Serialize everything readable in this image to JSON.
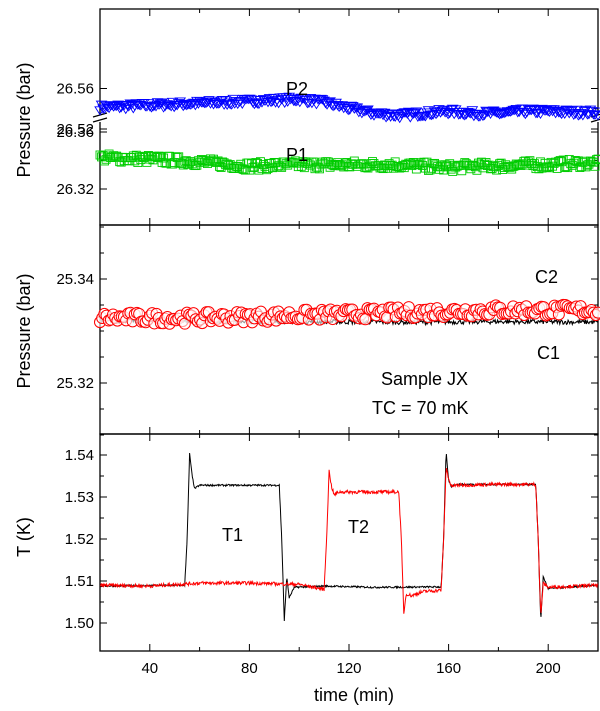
{
  "chart_data": [
    {
      "type": "scatter",
      "panel": "top",
      "ylabel": "Pressure (bar)",
      "xlim": [
        20,
        220
      ],
      "broken_y_axis": true,
      "segments": [
        {
          "ylim": [
            26.515,
            26.57
          ],
          "yticks": [
            "26.52",
            "26.56"
          ],
          "ytick_values": [
            26.52,
            26.56
          ]
        },
        {
          "ylim": [
            26.31,
            26.37
          ],
          "yticks": [
            "26.32",
            "26.36"
          ],
          "ytick_values": [
            26.32,
            26.36
          ]
        }
      ],
      "series": [
        {
          "name": "P2",
          "color": "#0000ff",
          "marker": "triangle-down-open",
          "x": [
            20,
            40,
            60,
            80,
            100,
            110,
            120,
            130,
            140,
            150,
            160,
            170,
            180,
            190,
            200,
            210,
            220
          ],
          "values": [
            26.541,
            26.543,
            26.545,
            26.547,
            26.549,
            26.546,
            26.54,
            26.535,
            26.533,
            26.535,
            26.537,
            26.535,
            26.535,
            26.537,
            26.537,
            26.536,
            26.536
          ]
        },
        {
          "name": "P1",
          "color": "#00cc00",
          "marker": "square-open",
          "x": [
            20,
            40,
            60,
            80,
            100,
            120,
            140,
            150,
            160,
            170,
            180,
            190,
            200,
            210,
            220
          ],
          "values": [
            26.342,
            26.341,
            26.339,
            26.336,
            26.337,
            26.337,
            26.337,
            26.336,
            26.335,
            26.336,
            26.336,
            26.337,
            26.337,
            26.338,
            26.338
          ]
        }
      ],
      "labels": [
        "P2",
        "P1"
      ]
    },
    {
      "type": "scatter",
      "panel": "middle",
      "ylabel": "Pressure (bar)",
      "xlim": [
        20,
        220
      ],
      "ylim": [
        25.31,
        25.35
      ],
      "yticks": [
        "25.32",
        "25.34"
      ],
      "ytick_values": [
        25.32,
        25.34
      ],
      "series": [
        {
          "name": "C2",
          "color": "#ff0000",
          "marker": "circle-open",
          "x": [
            20,
            60,
            100,
            140,
            180,
            220
          ],
          "values": [
            25.3325,
            25.3325,
            25.333,
            25.3335,
            25.334,
            25.334
          ]
        },
        {
          "name": "C1",
          "color": "#000000",
          "marker": "line",
          "x": [
            20,
            60,
            100,
            140,
            180,
            220
          ],
          "values": [
            25.332,
            25.332,
            25.3318,
            25.3317,
            25.3318,
            25.3317
          ]
        }
      ],
      "labels": [
        "C2",
        "C1"
      ],
      "annotation": [
        "Sample JX",
        "TC = 70 mK"
      ]
    },
    {
      "type": "line",
      "panel": "bottom",
      "xlabel": "time (min)",
      "ylabel": "T (K)",
      "xlim": [
        20,
        220
      ],
      "ylim": [
        1.4966,
        1.5466
      ],
      "xticks": [
        "40",
        "80",
        "120",
        "160",
        "200"
      ],
      "xtick_values": [
        40,
        80,
        120,
        160,
        200
      ],
      "yticks": [
        "1.50",
        "1.51",
        "1.52",
        "1.53",
        "1.54"
      ],
      "ytick_values": [
        1.5,
        1.51,
        1.52,
        1.53,
        1.54
      ],
      "series": [
        {
          "name": "T1",
          "color": "#000000",
          "x": [
            20,
            54,
            55,
            56,
            57,
            58,
            60,
            92,
            93,
            94,
            95,
            96,
            98,
            110,
            130,
            157,
            158,
            159,
            160,
            161,
            163,
            195,
            196,
            197,
            198,
            200,
            220
          ],
          "values": [
            1.5088,
            1.509,
            1.52,
            1.5404,
            1.535,
            1.532,
            1.5328,
            1.5328,
            1.52,
            1.5004,
            1.511,
            1.506,
            1.5085,
            1.5088,
            1.5085,
            1.5086,
            1.52,
            1.5408,
            1.534,
            1.5325,
            1.533,
            1.533,
            1.52,
            1.5004,
            1.511,
            1.5082,
            1.509
          ]
        },
        {
          "name": "T2",
          "color": "#ff0000",
          "x": [
            20,
            40,
            60,
            80,
            100,
            110,
            111,
            112,
            113,
            114,
            116,
            140,
            141,
            142,
            143,
            145,
            150,
            157,
            158,
            159,
            160,
            161,
            163,
            180,
            195,
            196,
            197,
            198,
            200,
            220
          ],
          "values": [
            1.509,
            1.5088,
            1.5095,
            1.5095,
            1.5092,
            1.508,
            1.52,
            1.5362,
            1.5325,
            1.5305,
            1.5312,
            1.5312,
            1.52,
            1.5023,
            1.507,
            1.5065,
            1.5075,
            1.5078,
            1.52,
            1.537,
            1.5345,
            1.5325,
            1.5328,
            1.533,
            1.533,
            1.52,
            1.5015,
            1.5095,
            1.5085,
            1.509
          ]
        }
      ],
      "labels": [
        "T1",
        "T2"
      ]
    }
  ]
}
